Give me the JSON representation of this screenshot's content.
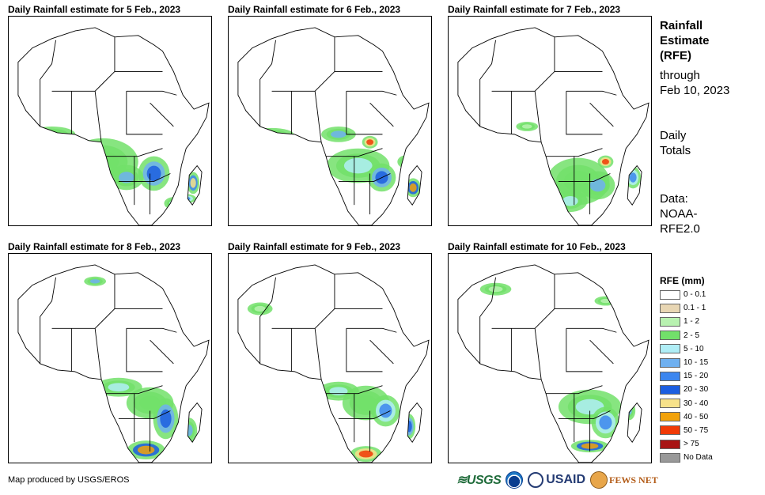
{
  "panels": [
    {
      "title": "Daily Rainfall estimate for 5 Feb., 2023"
    },
    {
      "title": "Daily Rainfall estimate for 6 Feb., 2023"
    },
    {
      "title": "Daily Rainfall estimate for 7 Feb., 2023"
    },
    {
      "title": "Daily Rainfall estimate for 8 Feb., 2023"
    },
    {
      "title": "Daily Rainfall estimate for 9 Feb., 2023"
    },
    {
      "title": "Daily Rainfall estimate for 10 Feb., 2023"
    }
  ],
  "side": {
    "title_lines": [
      "Rainfall",
      "Estimate",
      "(RFE)"
    ],
    "through_lines": [
      "through",
      "Feb 10, 2023"
    ],
    "daily_lines": [
      "Daily",
      "Totals"
    ],
    "data_lines": [
      "Data:",
      "NOAA-",
      "RFE2.0"
    ]
  },
  "legend": {
    "title": "RFE (mm)",
    "items": [
      {
        "label": "0 - 0.1",
        "color": "#ffffff"
      },
      {
        "label": "0.1 - 1",
        "color": "#e8d6b3"
      },
      {
        "label": "1 - 2",
        "color": "#b8f2b0"
      },
      {
        "label": "2 - 5",
        "color": "#72e06a"
      },
      {
        "label": "5 - 10",
        "color": "#b0eef6"
      },
      {
        "label": "10 - 15",
        "color": "#6fb0f0"
      },
      {
        "label": "15 - 20",
        "color": "#3c86ef"
      },
      {
        "label": "20 - 30",
        "color": "#1c5ee0"
      },
      {
        "label": "30 - 40",
        "color": "#f7e28a"
      },
      {
        "label": "40 - 50",
        "color": "#f2a20a"
      },
      {
        "label": "50 - 75",
        "color": "#f03a06"
      },
      {
        "label": "> 75",
        "color": "#a81414"
      },
      {
        "label": "No Data",
        "color": "#999999"
      }
    ]
  },
  "credit": "Map produced by USGS/EROS",
  "logos": {
    "usgs": "≋USGS",
    "usaid": "USAID",
    "fews": "FEWS NET"
  }
}
